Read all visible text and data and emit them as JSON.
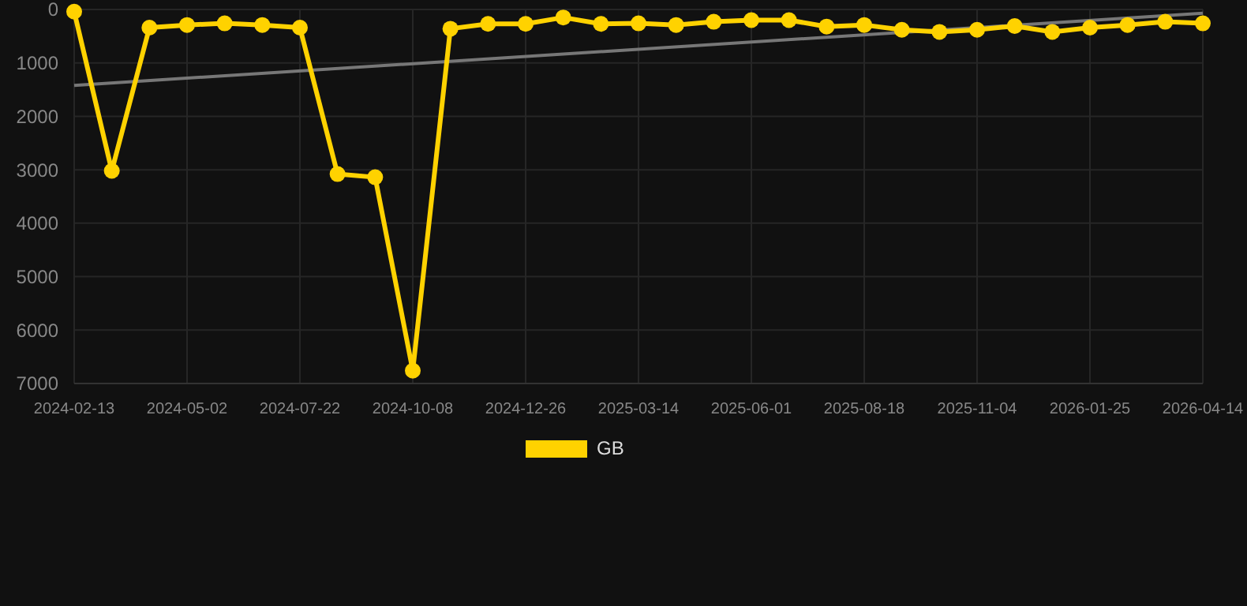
{
  "chart_data": {
    "type": "line",
    "categories": [
      "2024-02-13",
      null,
      null,
      "2024-05-02",
      null,
      null,
      "2024-07-22",
      null,
      null,
      "2024-10-08",
      null,
      null,
      "2024-12-26",
      null,
      null,
      "2025-03-14",
      null,
      null,
      "2025-06-01",
      null,
      null,
      "2025-08-18",
      null,
      null,
      "2025-11-04",
      null,
      null,
      "2026-01-25",
      null,
      null,
      "2026-04-14"
    ],
    "series": [
      {
        "name": "GB",
        "color": "#ffd200",
        "marker": "circle",
        "values": [
          40,
          3020,
          340,
          290,
          260,
          290,
          340,
          3080,
          3140,
          6760,
          360,
          270,
          270,
          150,
          270,
          260,
          290,
          230,
          200,
          200,
          320,
          290,
          380,
          420,
          380,
          310,
          420,
          340,
          290,
          230,
          260
        ]
      },
      {
        "type": "line",
        "color": "#777777",
        "marker": "none",
        "values": [
          1420,
          null,
          null,
          null,
          null,
          null,
          null,
          null,
          null,
          null,
          null,
          null,
          null,
          null,
          null,
          null,
          null,
          null,
          null,
          null,
          null,
          null,
          null,
          null,
          null,
          null,
          null,
          null,
          null,
          null,
          70
        ]
      }
    ],
    "ylim": [
      7000,
      0
    ],
    "yticks": [
      0,
      1000,
      2000,
      3000,
      4000,
      5000,
      6000,
      7000
    ],
    "grid": true,
    "legend": "bottom"
  }
}
